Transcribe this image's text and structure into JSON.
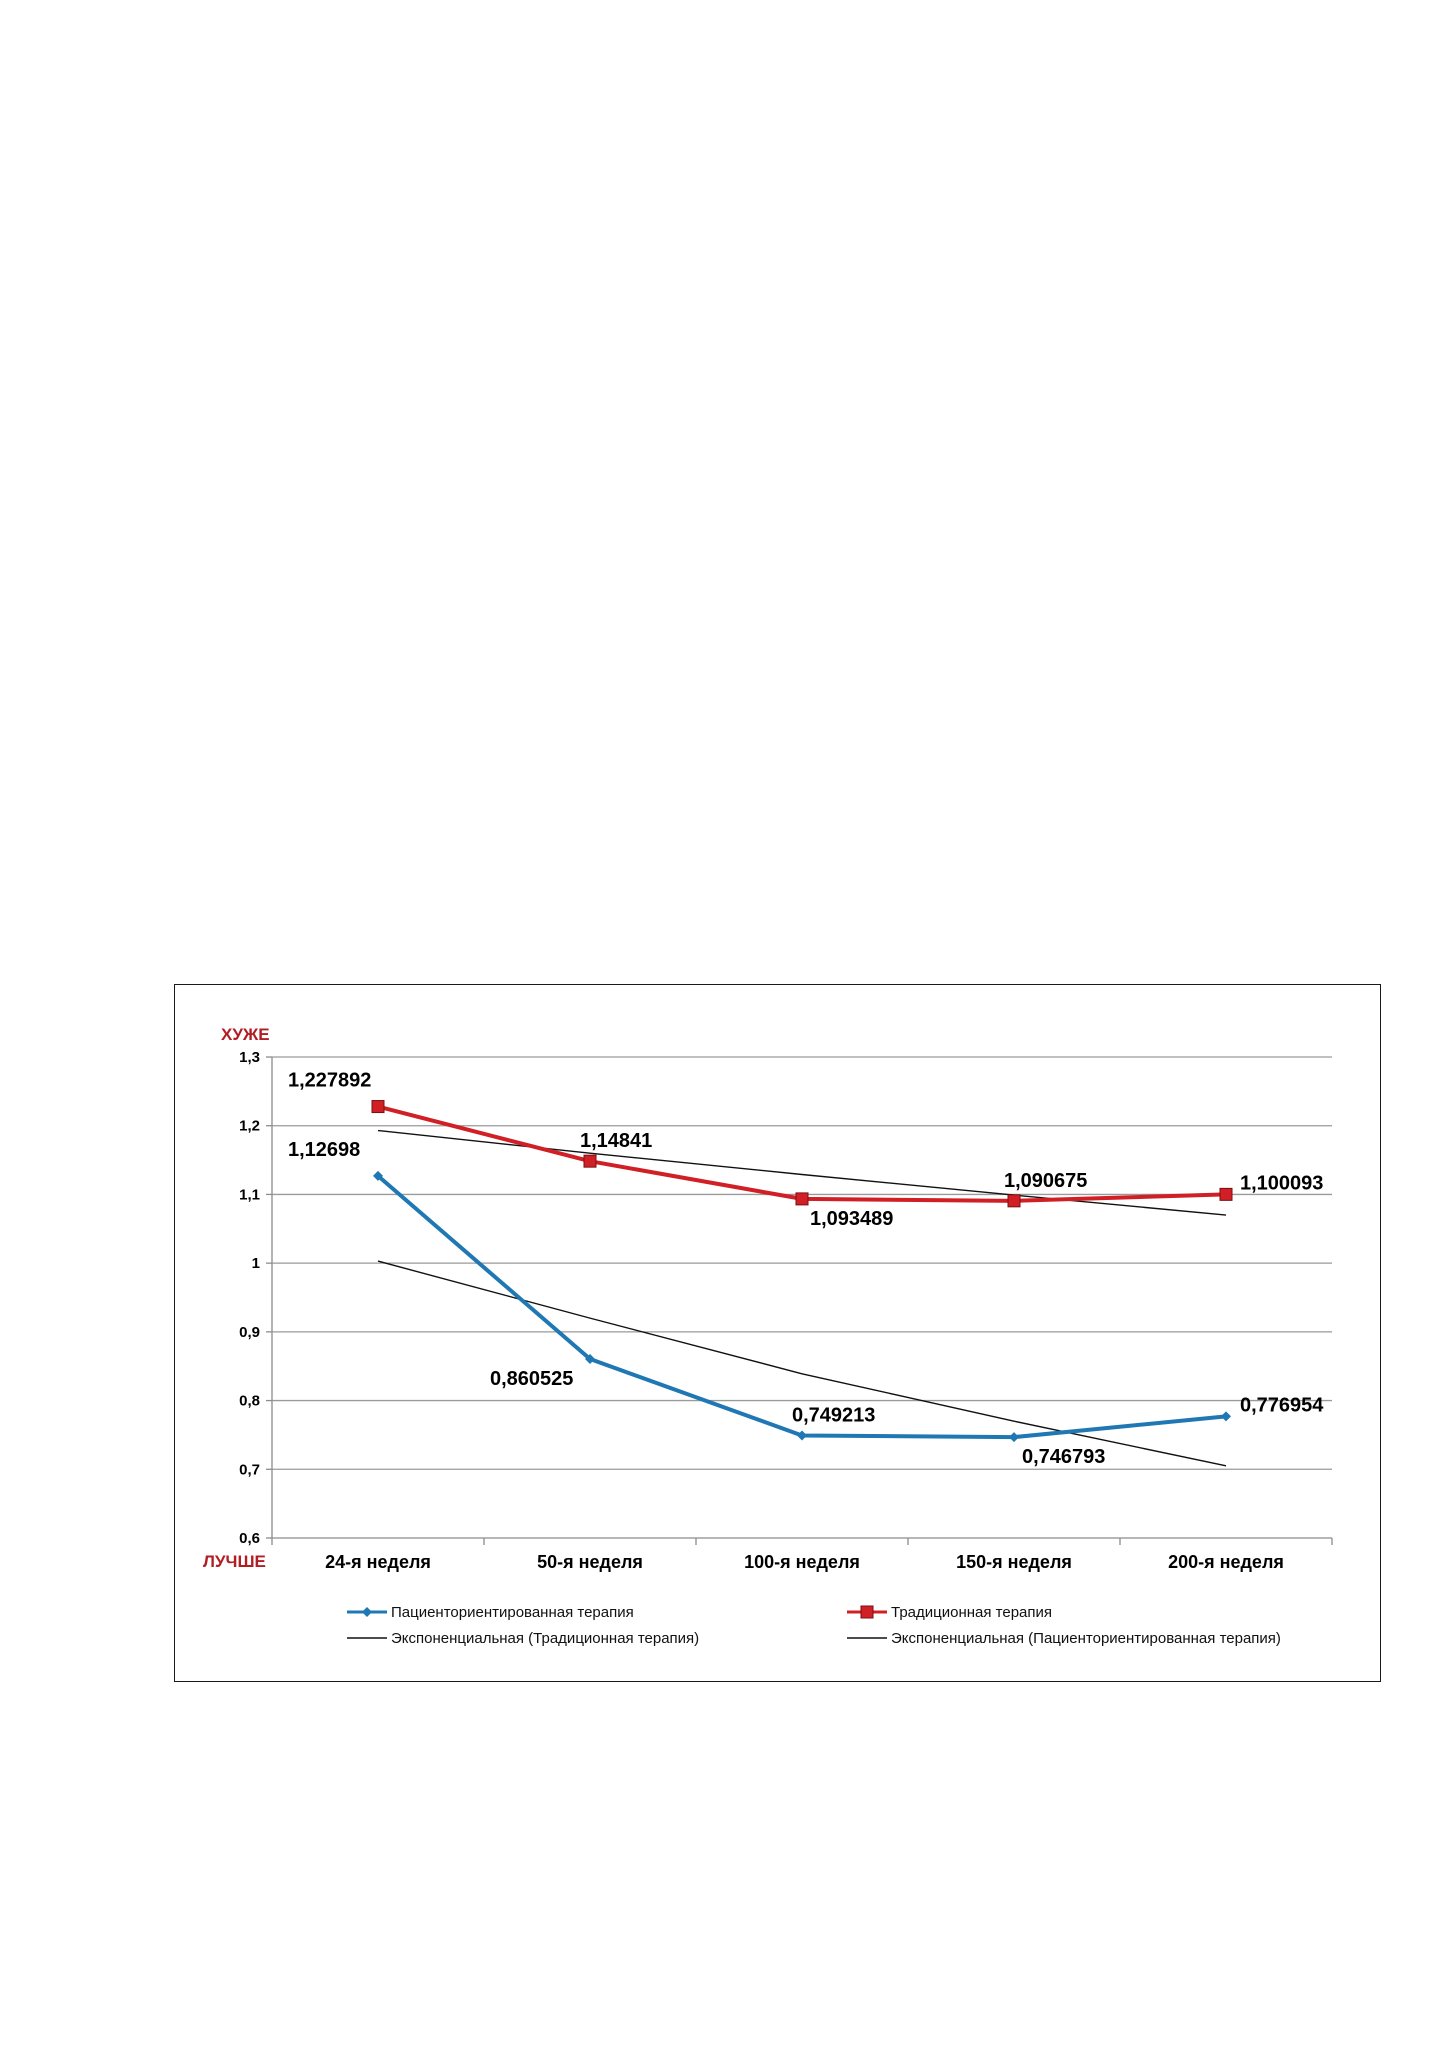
{
  "chart_data": {
    "type": "line",
    "y_top_word": "ХУЖЕ",
    "y_bottom_word": "ЛУЧШЕ",
    "categories": [
      "24-я неделя",
      "50-я неделя",
      "100-я неделя",
      "150-я неделя",
      "200-я неделя"
    ],
    "ylim": [
      0.6,
      1.3
    ],
    "yticks": [
      0.6,
      0.7,
      0.8,
      0.9,
      1.0,
      1.1,
      1.2,
      1.3
    ],
    "ytick_labels": [
      "0,6",
      "0,7",
      "0,8",
      "0,9",
      "1",
      "1,1",
      "1,2",
      "1,3"
    ],
    "grid": true,
    "legend_position": "bottom",
    "series": [
      {
        "name": "Пациенториентированная терапия",
        "color": "#1f77b4",
        "marker": "diamond",
        "values": [
          1.12698,
          0.860525,
          0.749213,
          0.746793,
          0.776954
        ],
        "labels": [
          "1,12698",
          "0,860525",
          "0,749213",
          "0,746793",
          "0,776954"
        ],
        "label_pos": [
          "above",
          "below-left",
          "above-right",
          "below-right",
          "right"
        ]
      },
      {
        "name": "Традиционная терапия",
        "color": "#d11f26",
        "marker": "square",
        "values": [
          1.227892,
          1.14841,
          1.093489,
          1.090675,
          1.100093
        ],
        "labels": [
          "1,227892",
          "1,14841",
          "1,093489",
          "1,090675",
          "1,100093"
        ],
        "label_pos": [
          "above",
          "above-right",
          "below-right",
          "above-right",
          "right"
        ]
      }
    ],
    "trendlines": [
      {
        "name": "Экспоненциальная (Традиционная терапия)",
        "color": "#111111",
        "values": [
          1.193,
          1.16,
          1.129,
          1.099,
          1.07
        ]
      },
      {
        "name": "Экспоненциальная (Пациенториентированная терапия)",
        "color": "#111111",
        "values": [
          1.003,
          0.92,
          0.839,
          0.77,
          0.705
        ]
      }
    ]
  }
}
